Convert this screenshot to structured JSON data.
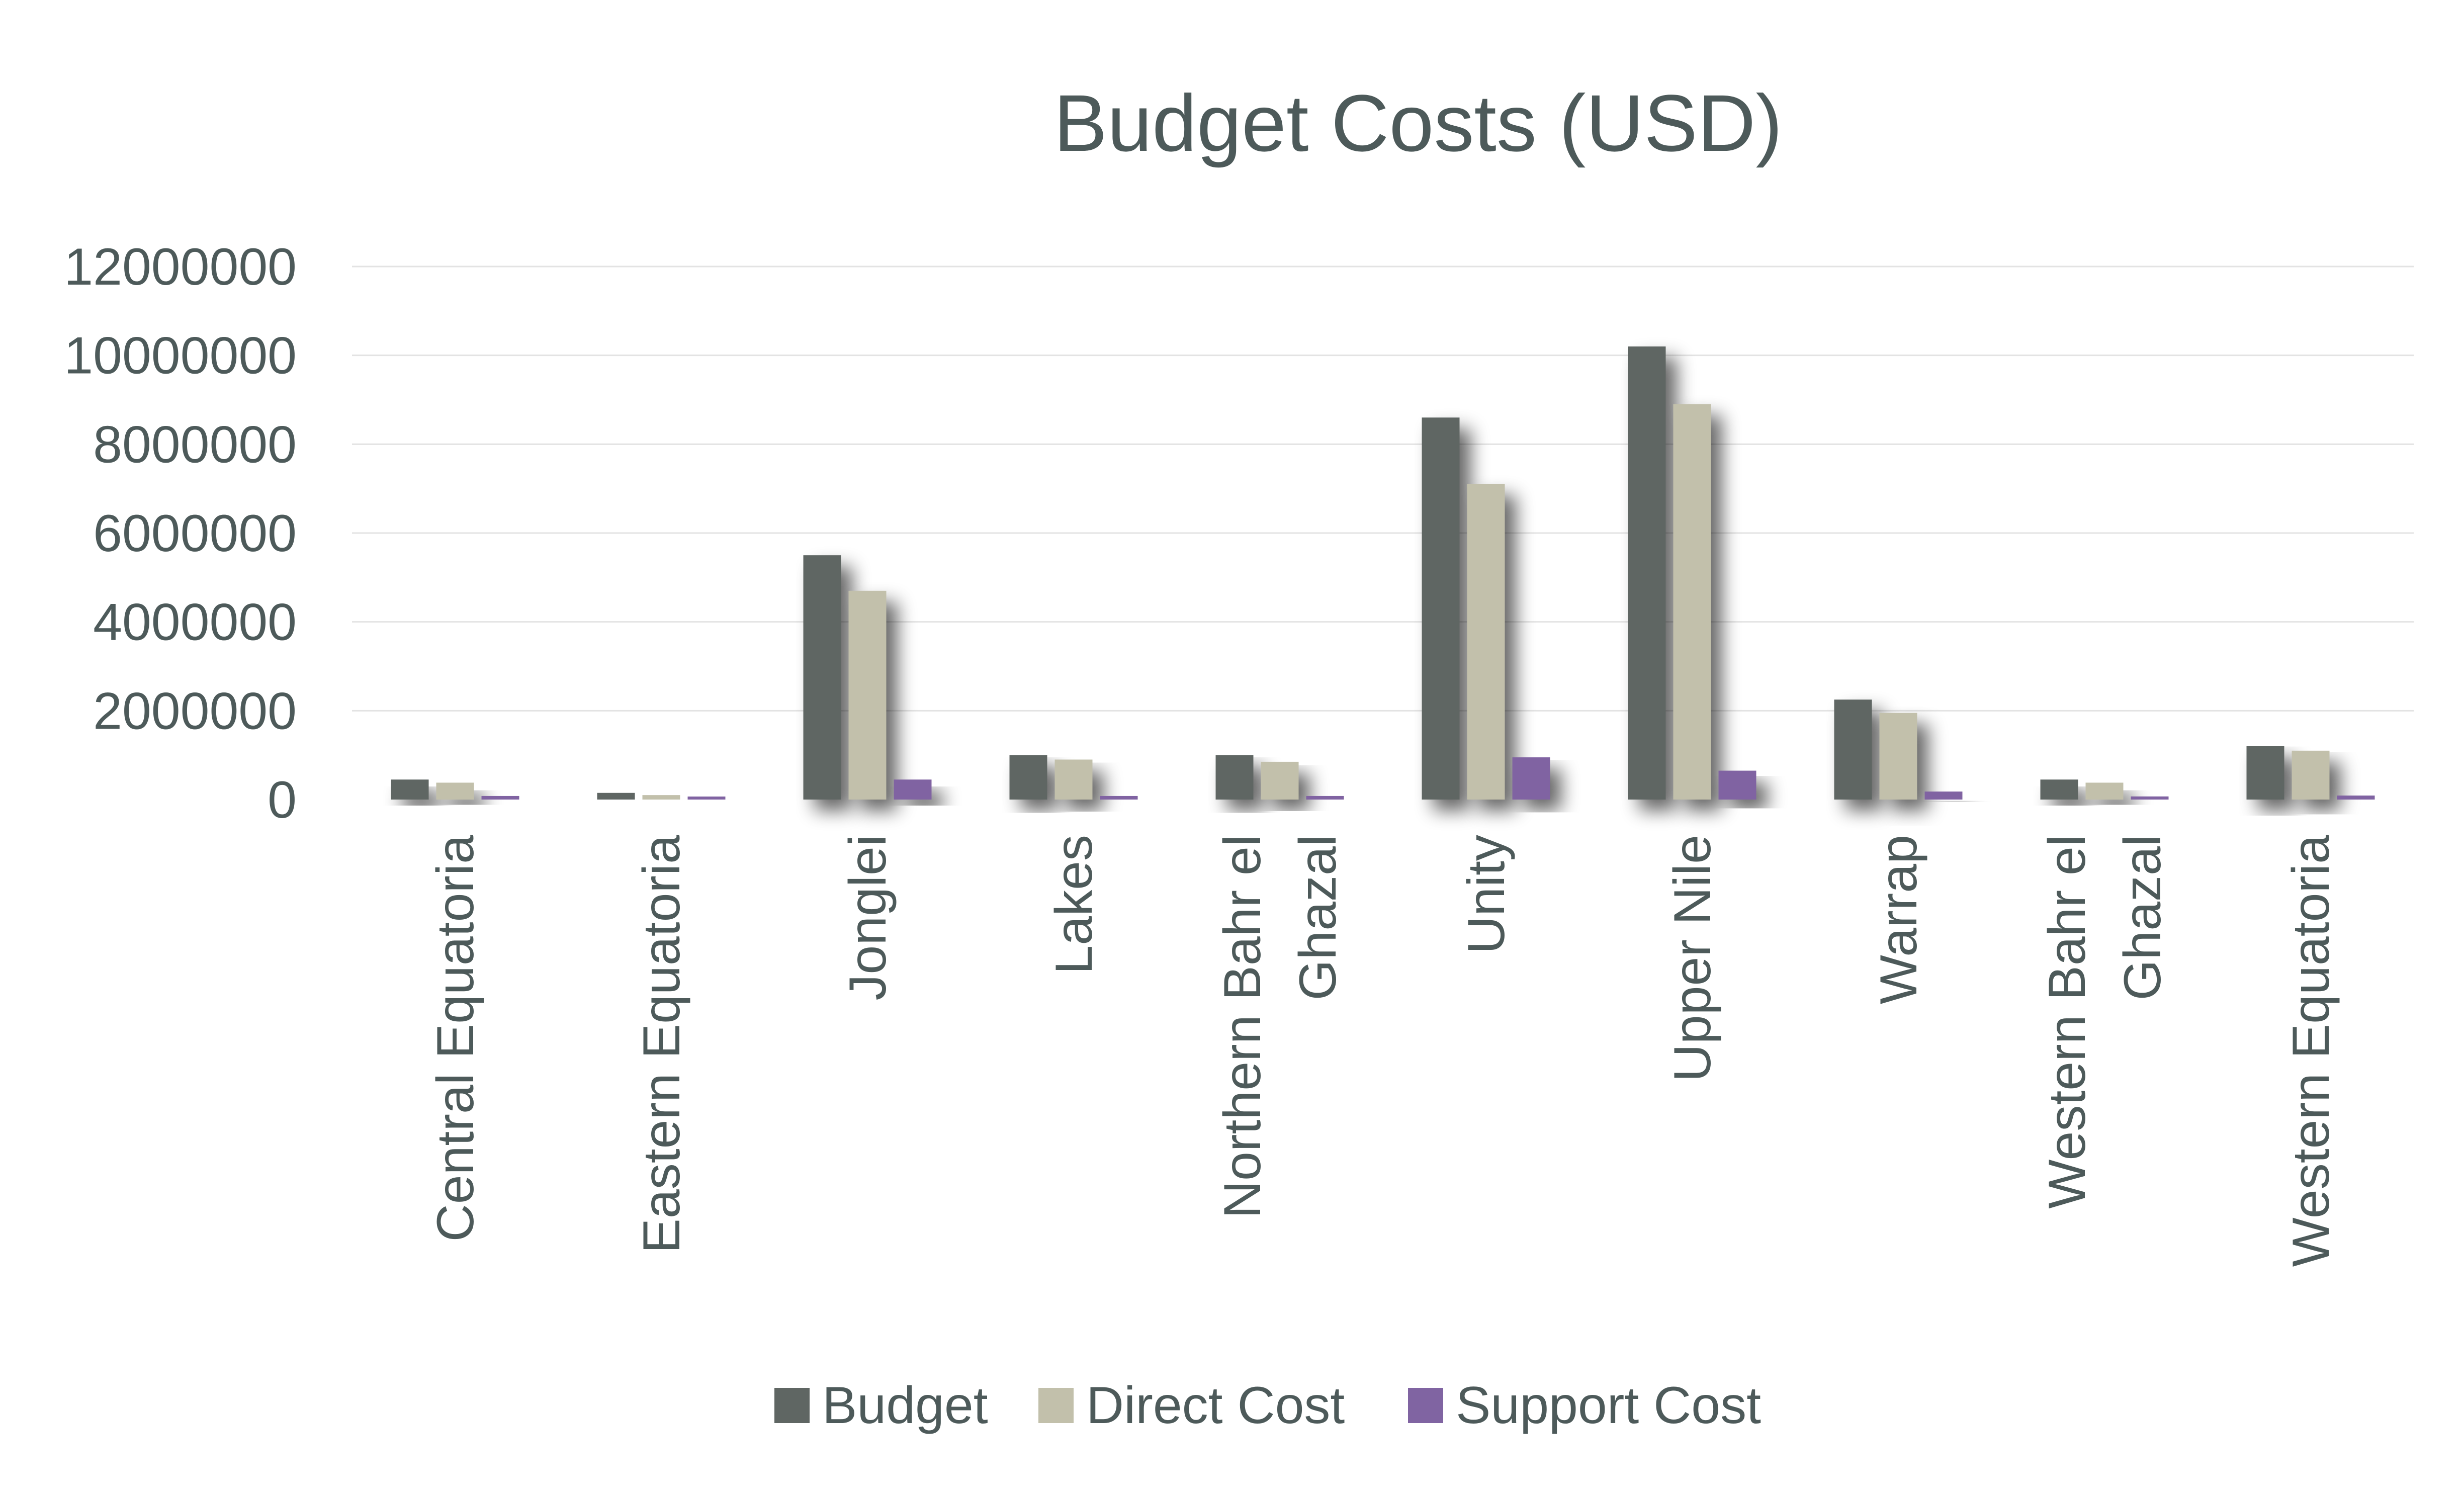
{
  "chart_data": {
    "type": "bar",
    "title": "Budget Costs (USD)",
    "xlabel": "",
    "ylabel": "",
    "ylim": [
      0,
      12000000
    ],
    "yticks": [
      0,
      2000000,
      4000000,
      6000000,
      8000000,
      10000000,
      12000000
    ],
    "ytick_labels": [
      "0",
      "2000000",
      "4000000",
      "6000000",
      "8000000",
      "10000000",
      "12000000"
    ],
    "grid": true,
    "legend_position": "bottom",
    "categories": [
      [
        "Central Equatoria"
      ],
      [
        "Eastern Equatoria"
      ],
      [
        "Jonglei"
      ],
      [
        "Lakes"
      ],
      [
        "Northern Bahr el",
        "Ghazal"
      ],
      [
        "Unity"
      ],
      [
        "Upper Nile"
      ],
      [
        "Warrap"
      ],
      [
        "Western Bahr el",
        "Ghazal"
      ],
      [
        "Western Equatoria"
      ]
    ],
    "series": [
      {
        "name": "Budget",
        "color": "#5f6663",
        "values": [
          450000,
          150000,
          5500000,
          1000000,
          1000000,
          8600000,
          10200000,
          2250000,
          450000,
          1200000
        ]
      },
      {
        "name": "Direct Cost",
        "color": "#c2c0ab",
        "values": [
          380000,
          100000,
          4700000,
          900000,
          850000,
          7100000,
          8900000,
          1950000,
          380000,
          1100000
        ]
      },
      {
        "name": "Support Cost",
        "color": "#8064a2",
        "values": [
          80000,
          50000,
          450000,
          80000,
          80000,
          950000,
          650000,
          180000,
          70000,
          90000
        ]
      }
    ]
  }
}
